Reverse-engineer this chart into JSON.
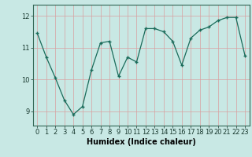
{
  "x": [
    0,
    1,
    2,
    3,
    4,
    5,
    6,
    7,
    8,
    9,
    10,
    11,
    12,
    13,
    14,
    15,
    16,
    17,
    18,
    19,
    20,
    21,
    22,
    23
  ],
  "y": [
    11.45,
    10.7,
    10.05,
    9.35,
    8.9,
    9.15,
    10.3,
    11.15,
    11.2,
    10.1,
    10.7,
    10.55,
    11.6,
    11.6,
    11.5,
    11.2,
    10.45,
    11.3,
    11.55,
    11.65,
    11.85,
    11.95,
    11.95,
    10.75
  ],
  "line_color": "#1a6b5a",
  "bg_color": "#c8e8e4",
  "grid_color": "#b0d4d0",
  "ylabel_ticks": [
    9,
    10,
    11,
    12
  ],
  "xlabel": "Humidex (Indice chaleur)",
  "ylim": [
    8.55,
    12.35
  ],
  "xlim": [
    -0.5,
    23.5
  ],
  "tick_label_fontsize": 6.0,
  "xlabel_fontsize": 7.0
}
